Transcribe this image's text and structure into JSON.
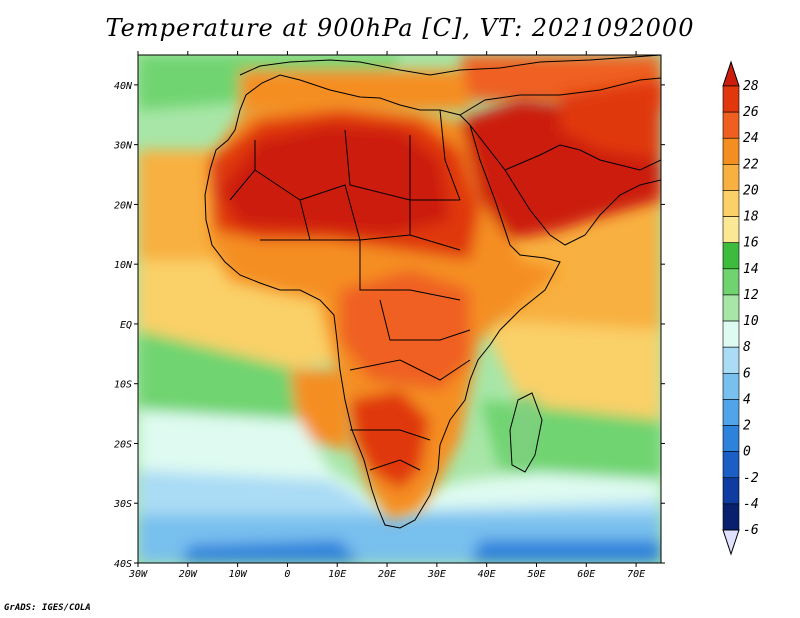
{
  "title": "Temperature at 900hPa [C], VT: 2021092000",
  "credit": "GrADS: IGES/COLA",
  "lon_labels": [
    "30W",
    "20W",
    "10W",
    "0",
    "10E",
    "20E",
    "30E",
    "40E",
    "50E",
    "60E",
    "70E"
  ],
  "lat_labels": [
    "40N",
    "30N",
    "20N",
    "10N",
    "EQ",
    "10S",
    "20S",
    "30S",
    "40S"
  ],
  "colorbar": {
    "levels": [
      "28",
      "26",
      "24",
      "22",
      "20",
      "18",
      "16",
      "14",
      "12",
      "10",
      "8",
      "6",
      "4",
      "2",
      "0",
      "-2",
      "-4",
      "-6"
    ],
    "colors": [
      "#cc1c0c",
      "#e0380c",
      "#ef6020",
      "#f58e20",
      "#f8b040",
      "#fad067",
      "#fbe895",
      "#3cbb3c",
      "#6fd46f",
      "#a8e6a8",
      "#dffbf1",
      "#aadcf5",
      "#78c0ee",
      "#50a4e8",
      "#2d82dc",
      "#1b5ec6",
      "#0e3ca0",
      "#08216e",
      "#e0e0ff"
    ]
  },
  "map": {
    "lon_range": [
      -30,
      75
    ],
    "lat_range": [
      -40,
      45
    ],
    "ocean_color": "#c9e9be",
    "regions": {
      "n_ocean": "#7fd07f",
      "s_ocean_warm": "#7fd07f",
      "s_ocean_cool": "#dffbf1",
      "s_ocean_cold": "#78c0ee",
      "s_ocean_colder": "#2d82dc",
      "trop_ocean": "#fad067",
      "sahara": "#cc1c0c",
      "arabia": "#cc1c0c",
      "central_africa": "#ef6020",
      "south_africa": "#f58e20",
      "indian_ocean": "#f8b040"
    }
  }
}
